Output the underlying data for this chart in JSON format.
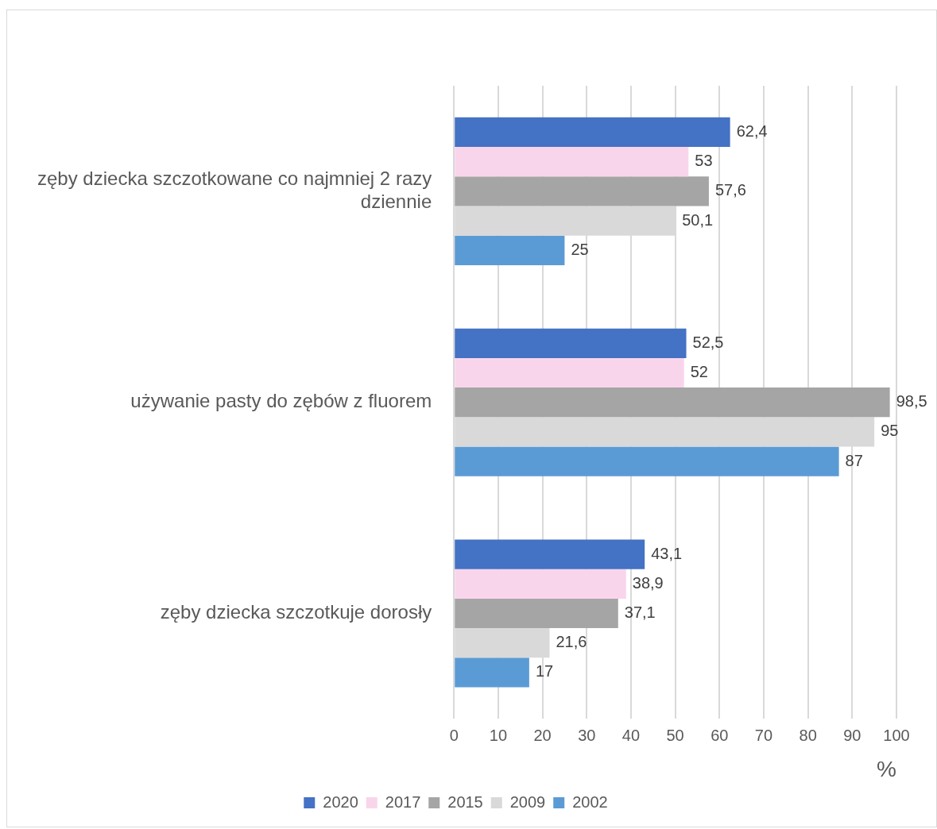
{
  "chart_data": {
    "type": "bar",
    "orientation": "horizontal",
    "categories": [
      "zęby dziecka szczotkowane co najmniej 2 razy dziennie",
      "używanie pasty do zębów z fluorem",
      "zęby dziecka szczotkuje dorosły"
    ],
    "series": [
      {
        "name": "2020",
        "color": "#4472c4",
        "values": [
          62.4,
          52.5,
          43.1
        ],
        "value_labels": [
          "62,4",
          "52,5",
          "43,1"
        ]
      },
      {
        "name": "2017",
        "color": "#f9d5ec",
        "values": [
          53,
          52,
          38.9
        ],
        "value_labels": [
          "53",
          "52",
          "38,9"
        ]
      },
      {
        "name": "2015",
        "color": "#a5a5a5",
        "values": [
          57.6,
          98.5,
          37.1
        ],
        "value_labels": [
          "57,6",
          "98,5",
          "37,1"
        ]
      },
      {
        "name": "2009",
        "color": "#d9d9d9",
        "values": [
          50.1,
          95,
          21.6
        ],
        "value_labels": [
          "50,1",
          "95",
          "21,6"
        ]
      },
      {
        "name": "2002",
        "color": "#5b9bd5",
        "values": [
          25,
          87,
          17
        ],
        "value_labels": [
          "25",
          "87",
          "17"
        ]
      }
    ],
    "xlim": [
      0,
      100
    ],
    "xticks": [
      0,
      10,
      20,
      30,
      40,
      50,
      60,
      70,
      80,
      90,
      100
    ],
    "xlabel": "%",
    "grid": "x",
    "legend": "bottom"
  }
}
